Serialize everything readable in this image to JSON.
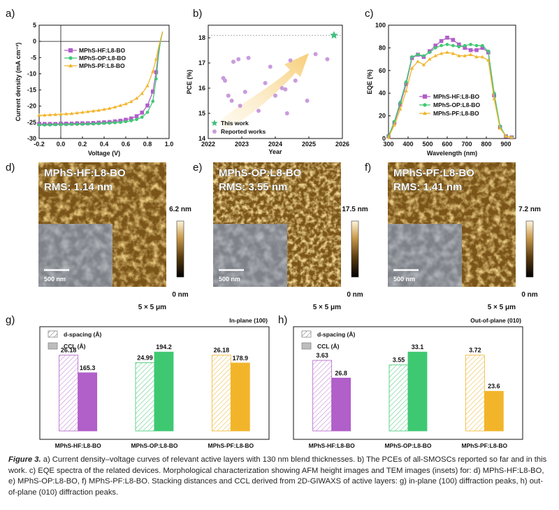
{
  "panels": {
    "a": "a)",
    "b": "b)",
    "c": "c)",
    "d": "d)",
    "e": "e)",
    "f": "f)",
    "g": "g)",
    "h": "h)"
  },
  "colors": {
    "hf": "#b15fc9",
    "op": "#3fc872",
    "pf": "#f2b52a",
    "reported": "#c99bdc",
    "star": "#3fbf7a",
    "arrow": "#f7d58a"
  },
  "chart_data": [
    {
      "id": "a",
      "type": "line",
      "xlabel": "Voltage (V)",
      "ylabel": "Current density (mA cm⁻²)",
      "xlim": [
        -0.2,
        1.0
      ],
      "ylim": [
        -30,
        5
      ],
      "xticks": [
        "-0.2",
        "0.0",
        "0.2",
        "0.4",
        "0.6",
        "0.8",
        "1.0"
      ],
      "yticks": [
        "5",
        "0",
        "-5",
        "-10",
        "-15",
        "-20",
        "-25",
        "-30"
      ],
      "legend_position": "upper-left",
      "series": [
        {
          "name": "MPhS-HF:L8-BO",
          "marker": "square",
          "color": "#b15fc9",
          "x": [
            -0.2,
            -0.15,
            -0.1,
            -0.05,
            0.0,
            0.05,
            0.1,
            0.15,
            0.2,
            0.25,
            0.3,
            0.35,
            0.4,
            0.45,
            0.5,
            0.55,
            0.6,
            0.65,
            0.7,
            0.75,
            0.8,
            0.85,
            0.88,
            0.9,
            0.92,
            0.94
          ],
          "y": [
            -25.5,
            -25.5,
            -25.5,
            -25.5,
            -25.4,
            -25.4,
            -25.4,
            -25.3,
            -25.3,
            -25.3,
            -25.2,
            -25.1,
            -25.0,
            -24.9,
            -24.7,
            -24.5,
            -24.2,
            -23.8,
            -23.1,
            -22.0,
            -19.8,
            -15.5,
            -9.5,
            -3.8,
            0,
            3
          ]
        },
        {
          "name": "MPhS-OP:L8-BO",
          "marker": "circle",
          "color": "#3fc872",
          "x": [
            -0.2,
            -0.15,
            -0.1,
            -0.05,
            0.0,
            0.05,
            0.1,
            0.15,
            0.2,
            0.25,
            0.3,
            0.35,
            0.4,
            0.45,
            0.5,
            0.55,
            0.6,
            0.65,
            0.7,
            0.75,
            0.8,
            0.85,
            0.88,
            0.9,
            0.92,
            0.94
          ],
          "y": [
            -25.8,
            -25.8,
            -25.8,
            -25.7,
            -25.7,
            -25.7,
            -25.6,
            -25.6,
            -25.6,
            -25.5,
            -25.5,
            -25.4,
            -25.3,
            -25.2,
            -25.1,
            -25.0,
            -24.8,
            -24.5,
            -24.1,
            -23.4,
            -21.9,
            -18.5,
            -11.6,
            -5.0,
            0,
            3
          ]
        },
        {
          "name": "MPhS-PF:L8-BO",
          "marker": "triangle",
          "color": "#f2b52a",
          "x": [
            -0.2,
            -0.15,
            -0.1,
            -0.05,
            0.0,
            0.05,
            0.1,
            0.15,
            0.2,
            0.25,
            0.3,
            0.35,
            0.4,
            0.45,
            0.5,
            0.55,
            0.6,
            0.65,
            0.7,
            0.75,
            0.8,
            0.85,
            0.88,
            0.9,
            0.92,
            0.94
          ],
          "y": [
            -22.8,
            -22.8,
            -22.7,
            -22.6,
            -22.5,
            -22.4,
            -22.3,
            -22.1,
            -21.9,
            -21.7,
            -21.5,
            -21.3,
            -21.0,
            -20.7,
            -20.3,
            -19.8,
            -19.3,
            -18.6,
            -17.6,
            -16.1,
            -13.7,
            -9.3,
            -5.5,
            -2.2,
            0.5,
            3
          ]
        }
      ]
    },
    {
      "id": "b",
      "type": "scatter",
      "xlabel": "Year",
      "ylabel": "PCE (%)",
      "xlim": [
        2022,
        2026
      ],
      "ylim": [
        14,
        18.5
      ],
      "xticks": [
        "2022",
        "2023",
        "2024",
        "2025",
        "2026"
      ],
      "yticks": [
        "14",
        "15",
        "16",
        "17",
        "18"
      ],
      "reference_line": 18.1,
      "legend_position": "lower-left",
      "series": [
        {
          "name": "This work",
          "marker": "star",
          "color": "#3fbf7a",
          "x": [
            2025.75
          ],
          "y": [
            18.1
          ]
        },
        {
          "name": "Reported works",
          "marker": "circle",
          "color": "#c99bdc",
          "x": [
            2022.45,
            2022.5,
            2022.6,
            2022.7,
            2022.75,
            2022.9,
            2022.95,
            2023.1,
            2023.2,
            2023.5,
            2023.7,
            2023.85,
            2024.0,
            2024.2,
            2024.3,
            2024.35,
            2024.45,
            2024.6,
            2024.95,
            2025.2,
            2025.55
          ],
          "y": [
            16.4,
            16.3,
            15.7,
            15.5,
            17.05,
            17.15,
            15.3,
            15.85,
            17.2,
            15.1,
            16.2,
            16.85,
            15.7,
            16.0,
            15.95,
            15.0,
            17.1,
            16.3,
            15.5,
            17.35,
            17.15
          ]
        }
      ]
    },
    {
      "id": "c",
      "type": "line",
      "xlabel": "Wavelength (nm)",
      "ylabel": "EQE (%)",
      "xlim": [
        300,
        950
      ],
      "ylim": [
        0,
        100
      ],
      "xticks": [
        "300",
        "400",
        "500",
        "600",
        "700",
        "800",
        "900"
      ],
      "yticks": [
        "0",
        "20",
        "40",
        "60",
        "80",
        "100"
      ],
      "legend_position": "lower-center",
      "series": [
        {
          "name": "MPhS-HF:L8-BO",
          "marker": "square",
          "color": "#b15fc9",
          "x": [
            300,
            330,
            360,
            390,
            420,
            450,
            480,
            510,
            540,
            570,
            600,
            630,
            660,
            690,
            720,
            750,
            780,
            810,
            840,
            870,
            900,
            930
          ],
          "y": [
            2,
            14,
            30,
            48,
            71,
            74,
            72,
            77,
            82,
            86,
            89,
            87,
            83,
            80,
            78,
            78,
            80,
            76,
            38,
            10,
            2,
            1
          ]
        },
        {
          "name": "MPhS-OP:L8-BO",
          "marker": "circle",
          "color": "#3fc872",
          "x": [
            300,
            330,
            360,
            390,
            420,
            450,
            480,
            510,
            540,
            570,
            600,
            630,
            660,
            690,
            720,
            750,
            780,
            810,
            840,
            870,
            900,
            930
          ],
          "y": [
            2,
            15,
            32,
            50,
            72,
            74,
            73,
            76,
            80,
            82,
            83,
            82,
            81,
            82,
            83,
            82,
            82,
            77,
            40,
            11,
            2,
            1
          ]
        },
        {
          "name": "MPhS-PF:L8-BO",
          "marker": "triangle",
          "color": "#f2b52a",
          "x": [
            300,
            330,
            360,
            390,
            420,
            450,
            480,
            510,
            540,
            570,
            600,
            630,
            660,
            690,
            720,
            750,
            780,
            810,
            840,
            870,
            900,
            930
          ],
          "y": [
            1,
            12,
            26,
            42,
            62,
            68,
            65,
            70,
            73,
            75,
            76,
            75,
            73,
            73,
            74,
            72,
            72,
            69,
            35,
            9,
            2,
            1
          ]
        }
      ]
    },
    {
      "id": "g",
      "type": "bar",
      "title": "In-plane (100)",
      "categories": [
        "MPhS-HF:L8-BO",
        "MPhS-OP:L8-BO",
        "MPhS-PF:L8-BO"
      ],
      "legend_position": "upper-left",
      "series": [
        {
          "name": "d-spacing (Å)",
          "pattern": "hatched",
          "values": [
            26.18,
            24.99,
            26.18
          ]
        },
        {
          "name": "CCL (Å)",
          "pattern": "solid",
          "values": [
            165.3,
            194.2,
            178.9
          ]
        }
      ]
    },
    {
      "id": "h",
      "type": "bar",
      "title": "Out-of-plane (010)",
      "categories": [
        "MPhS-HF:L8-BO",
        "MPhS-OP:L8-BO",
        "MPhS-PF:L8-BO"
      ],
      "legend_position": "upper-left",
      "series": [
        {
          "name": "d-spacing (Å)",
          "pattern": "hatched",
          "values": [
            3.63,
            3.55,
            3.72
          ]
        },
        {
          "name": "CCL (Å)",
          "pattern": "solid",
          "values": [
            26.8,
            33.1,
            23.6
          ]
        }
      ]
    }
  ],
  "afm": [
    {
      "id": "d",
      "title": "MPhS-HF:L8-BO",
      "rms": "RMS: 1.14 nm",
      "max": "6.2 nm",
      "min": "0 nm",
      "scale": "500 nm",
      "size": "5 × 5 μm"
    },
    {
      "id": "e",
      "title": "MPhS-OP:L8-BO",
      "rms": "RMS: 3.55 nm",
      "max": "17.5 nm",
      "min": "0 nm",
      "scale": "500 nm",
      "size": "5 × 5 μm"
    },
    {
      "id": "f",
      "title": "MPhS-PF:L8-BO",
      "rms": "RMS: 1.41 nm",
      "max": "7.2 nm",
      "min": "0 nm",
      "scale": "500 nm",
      "size": "5 × 5 μm"
    }
  ],
  "caption": {
    "label": "Figure 3.",
    "text": " a) Current density–voltage curves of relevant active layers with 130 nm blend thicknesses. b) The PCEs of all-SMOSCs reported so far and in this work. c) EQE spectra of the related devices. Morphological characterization showing AFM height images and TEM images (insets) for: d) MPhS-HF:L8-BO, e) MPhS-OP:L8-BO, f) MPhS-PF:L8-BO. Stacking distances and CCL derived from 2D-GIWAXS of active layers: g) in-plane (100) diffraction peaks, h) out-of-plane (010) diffraction peaks."
  }
}
